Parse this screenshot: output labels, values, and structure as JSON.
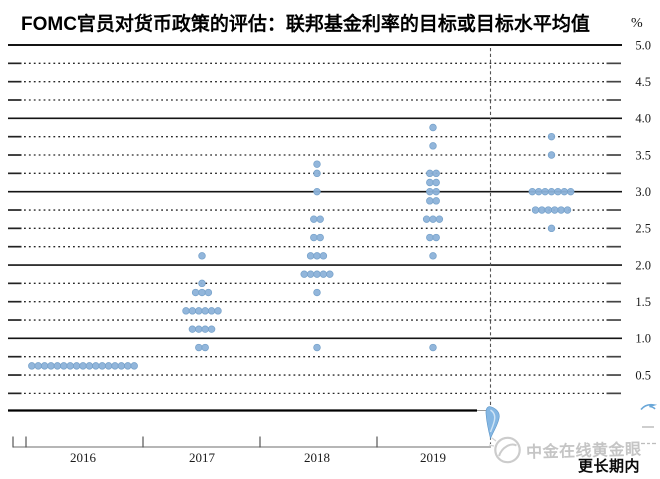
{
  "title": "FOMC官员对货币政策的评估：联邦基金利率的目标或目标水平均值",
  "percent_label": "%",
  "watermark": {
    "text": "中金在线黄金眼"
  },
  "chart_data": {
    "type": "scatter",
    "subtype": "fomc-dot-plot",
    "title": "FOMC官员对货币政策的评估：联邦基金利率的目标或目标水平均值",
    "ylabel": "%",
    "ylim": [
      0,
      5.0
    ],
    "grid_minor_step": 0.25,
    "grid_major_step": 1.0,
    "grid_minor_style": "dotted",
    "grid_major_style": "solid",
    "y_tick_labels": [
      "0.5",
      "1.0",
      "1.5",
      "2.0",
      "2.5",
      "3.0",
      "3.5",
      "4.0",
      "4.5",
      "5.0"
    ],
    "x_tick_labels": [
      "2016",
      "2017",
      "2018",
      "2019"
    ],
    "longer_run_label": "更长期内",
    "dot_color": "#8cb2d9",
    "categories": [
      "2016",
      "2017",
      "2018",
      "2019",
      "更长期内"
    ],
    "series": [
      {
        "name": "2016",
        "dots": [
          {
            "value": 0.625,
            "count": 17
          }
        ]
      },
      {
        "name": "2017",
        "dots": [
          {
            "value": 2.125,
            "count": 1
          },
          {
            "value": 1.75,
            "count": 1
          },
          {
            "value": 1.625,
            "count": 3
          },
          {
            "value": 1.375,
            "count": 6
          },
          {
            "value": 1.125,
            "count": 4
          },
          {
            "value": 0.875,
            "count": 2
          }
        ]
      },
      {
        "name": "2018",
        "dots": [
          {
            "value": 3.375,
            "count": 1
          },
          {
            "value": 3.25,
            "count": 1
          },
          {
            "value": 3.0,
            "count": 1
          },
          {
            "value": 2.625,
            "count": 2
          },
          {
            "value": 2.375,
            "count": 2
          },
          {
            "value": 2.125,
            "count": 3
          },
          {
            "value": 1.875,
            "count": 5
          },
          {
            "value": 1.625,
            "count": 1
          },
          {
            "value": 0.875,
            "count": 1
          }
        ]
      },
      {
        "name": "2019",
        "dots": [
          {
            "value": 3.875,
            "count": 1
          },
          {
            "value": 3.625,
            "count": 1
          },
          {
            "value": 3.25,
            "count": 2
          },
          {
            "value": 3.125,
            "count": 2
          },
          {
            "value": 3.0,
            "count": 2
          },
          {
            "value": 2.875,
            "count": 2
          },
          {
            "value": 2.625,
            "count": 3
          },
          {
            "value": 2.375,
            "count": 2
          },
          {
            "value": 2.125,
            "count": 1
          },
          {
            "value": 0.875,
            "count": 1
          }
        ]
      },
      {
        "name": "更长期内",
        "dots": [
          {
            "value": 3.75,
            "count": 1
          },
          {
            "value": 3.5,
            "count": 1
          },
          {
            "value": 3.0,
            "count": 7
          },
          {
            "value": 2.75,
            "count": 6
          },
          {
            "value": 2.5,
            "count": 1
          }
        ]
      }
    ],
    "dots_total_per_column": [
      17,
      17,
      17,
      17,
      16
    ]
  }
}
